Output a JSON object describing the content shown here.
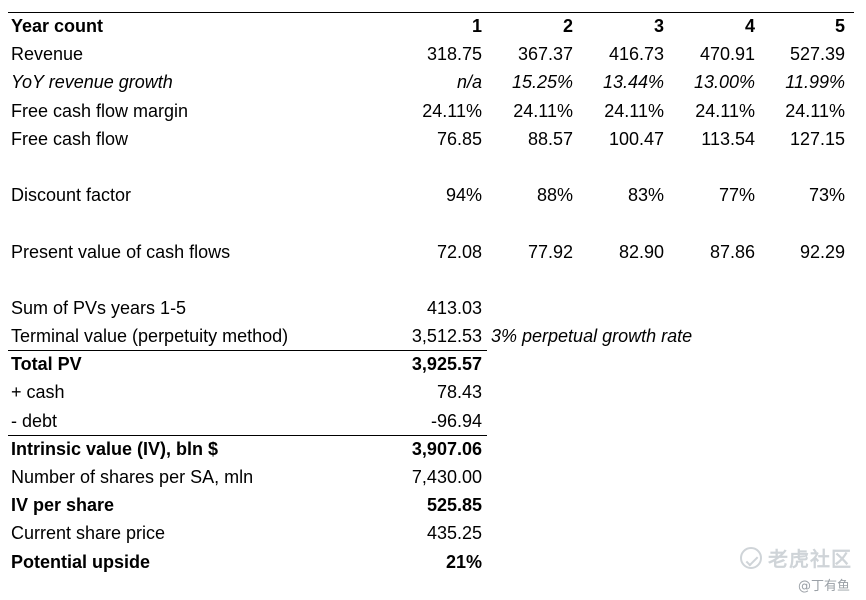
{
  "header": {
    "label": "Year count",
    "years": [
      "1",
      "2",
      "3",
      "4",
      "5"
    ]
  },
  "rows": {
    "revenue": {
      "label": "Revenue",
      "values": [
        "318.75",
        "367.37",
        "416.73",
        "470.91",
        "527.39"
      ]
    },
    "growth": {
      "label": "YoY revenue growth",
      "values": [
        "n/a",
        "15.25%",
        "13.44%",
        "13.00%",
        "11.99%"
      ]
    },
    "fcf_margin": {
      "label": "Free cash flow margin",
      "values": [
        "24.11%",
        "24.11%",
        "24.11%",
        "24.11%",
        "24.11%"
      ]
    },
    "fcf": {
      "label": "Free cash flow",
      "values": [
        "76.85",
        "88.57",
        "100.47",
        "113.54",
        "127.15"
      ]
    },
    "discount": {
      "label": "Discount factor",
      "values": [
        "94%",
        "88%",
        "83%",
        "77%",
        "73%"
      ]
    },
    "pv": {
      "label": "Present value of cash flows",
      "values": [
        "72.08",
        "77.92",
        "82.90",
        "87.86",
        "92.29"
      ]
    }
  },
  "summary": {
    "sum_pv": {
      "label": "Sum of PVs years 1-5",
      "value": "413.03"
    },
    "terminal": {
      "label": "Terminal value (perpetuity method)",
      "value": "3,512.53",
      "note": "3% perpetual growth rate"
    },
    "total_pv": {
      "label": "Total PV",
      "value": "3,925.57"
    },
    "cash": {
      "label": "+ cash",
      "value": "78.43"
    },
    "debt": {
      "label": "- debt",
      "value": "-96.94"
    },
    "iv": {
      "label": "Intrinsic value (IV), bln $",
      "value": "3,907.06"
    },
    "shares": {
      "label": "Number of shares per SA, mln",
      "value": "7,430.00"
    },
    "iv_share": {
      "label": "IV per share",
      "value": "525.85"
    },
    "price": {
      "label": "Current share price",
      "value": "435.25"
    },
    "upside": {
      "label": "Potential upside",
      "value": "21%"
    }
  },
  "watermark": {
    "brand": "老虎社区",
    "user": "@丁有鱼",
    "icon": "tiger-community-logo-icon"
  }
}
